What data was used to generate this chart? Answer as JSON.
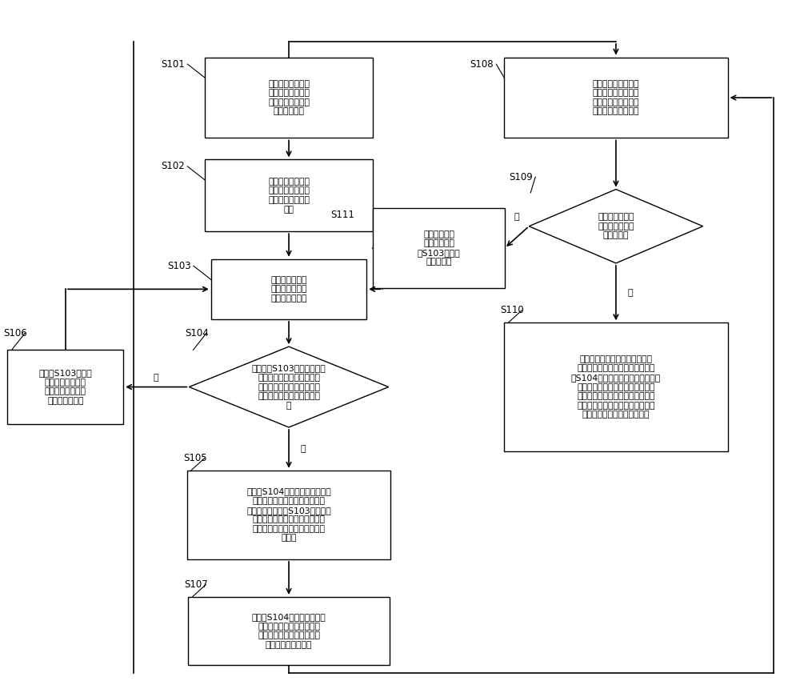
{
  "fig_width": 10.0,
  "fig_height": 8.56,
  "bg_color": "#ffffff",
  "font_size": 7.8,
  "label_font_size": 8.5,
  "nodes": {
    "S101": {
      "label": "在栅格地图中设置\n导航起点和导航终\n点，并创建待遍历\n节点缓存空间"
    },
    "S102": {
      "label": "将导航起点设置为\n当前父节点，并加\n入待遍历节点缓存\n空间"
    },
    "S103": {
      "label": "以当前父节点为\n中心在栅格地图\n中进行邻域搜索"
    },
    "S104": {
      "label": "判断步骤S103在邻域搜索到\n的子节点是否属于预先搜索\n出的候选路线坐标集合内对\n应的一条候选路线的一个端\n点"
    },
    "S105": {
      "label": "将步骤S104对应的一条候选路线\n的另一个端点加入待遍历节点缓\n存空间，并将步骤S103搜索到的\n不在所述对应的一条候选路线上\n的空闭栅格点加入待遍历节点缓\n存空间"
    },
    "S106": {
      "label": "将步骤S103在邻域\n搜索到的空闭栅格\n点加入所述待遍历\n节点缓存空间内"
    },
    "S107": {
      "label": "将步骤S104对应的一条候选\n路线的两个端点之间的所有\n中间节点与该端点都设置为\n不可重复搜索的节点"
    },
    "S108": {
      "label": "从所述的待遍历节点\n缓存空间内选择出路\n径代价和值最小的节\n点作为下一个父节点"
    },
    "S109": {
      "label": "判断所述下一个\n父节点是否为所\n述导航终点"
    },
    "S110": {
      "label": "基于前述记录的父节点的位置信\n息，从所述导航终点开始，除了步\n骤S104所述候选路线的所有中间节\n点及其相应的一个端点之外，依次\n连接子节点及其父节点，直至连接\n到所述导航起点，规划出从所述导\n航起点到所述导航终点的路径"
    },
    "S111": {
      "label": "将所述下一个\n父节点更新步\n骤S103所述的\n当前父节点"
    }
  }
}
